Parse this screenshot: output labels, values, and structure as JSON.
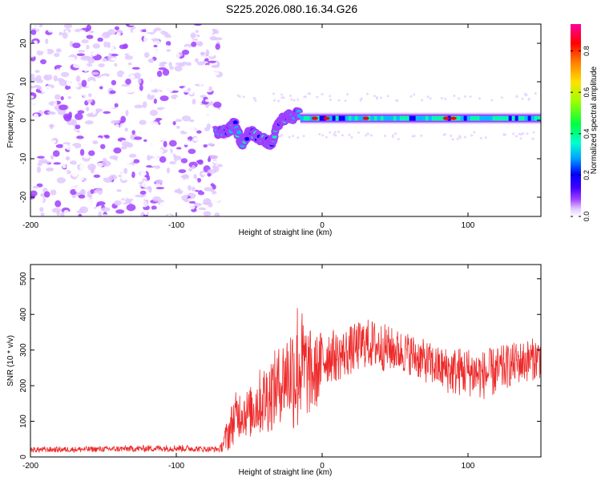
{
  "chart_data": {
    "title": "S225.2026.080.16.34.G26",
    "panels": [
      {
        "type": "heatmap",
        "name": "spectrogram",
        "xlabel": "Height of straight line (km)",
        "ylabel": "Frequency (Hz)",
        "xlim": [
          -200,
          150
        ],
        "ylim": [
          -25,
          25
        ],
        "xticks": [
          -200,
          -100,
          0,
          100
        ],
        "yticks": [
          -20,
          -10,
          0,
          10,
          20
        ],
        "colorbar": {
          "label": "Normalized spectral amplitude",
          "range": [
            0,
            0.93
          ],
          "ticks": [
            0.0,
            0.2,
            0.4,
            0.6,
            0.8
          ],
          "tick_labels": [
            "0.0",
            "0.2",
            "0.4",
            "0.6",
            "0.8"
          ],
          "colors": [
            "#ffffff",
            "#e0c8ff",
            "#a040ff",
            "#4000ff",
            "#0000ff",
            "#00c0ff",
            "#00ffb0",
            "#40ff00",
            "#e0ff00",
            "#ff8000",
            "#ff0000",
            "#ff00a0"
          ]
        },
        "regions": {
          "noise": {
            "x_range": [
              -200,
              -70
            ],
            "y_range": [
              -25,
              25
            ],
            "amplitude": 0.15
          },
          "transition": {
            "x_range": [
              -72,
              -15
            ],
            "freq_path": [
              [
                -72,
                -3
              ],
              [
                -65,
                -3
              ],
              [
                -60,
                -1
              ],
              [
                -55,
                -6
              ],
              [
                -50,
                -3
              ],
              [
                -45,
                -4
              ],
              [
                -40,
                -5
              ],
              [
                -35,
                -6
              ],
              [
                -32,
                -3
              ],
              [
                -28,
                0
              ],
              [
                -24,
                1
              ],
              [
                -20,
                1
              ],
              [
                -15,
                2
              ]
            ]
          },
          "carrier": {
            "x_range": [
              -15,
              150
            ],
            "freq": 0.5,
            "amplitude": 0.45
          }
        }
      },
      {
        "type": "line",
        "name": "snr",
        "xlabel": "Height of straight line (km)",
        "ylabel": "SNR (10 * v/v)",
        "xlim": [
          -200,
          150
        ],
        "ylim": [
          0,
          540
        ],
        "xticks": [
          -200,
          -100,
          0,
          100
        ],
        "yticks": [
          0,
          100,
          200,
          300,
          400,
          500
        ],
        "color": "#ee2a2a",
        "envelope": {
          "x": [
            -200,
            -150,
            -100,
            -80,
            -70,
            -65,
            -60,
            -55,
            -50,
            -45,
            -40,
            -35,
            -30,
            -25,
            -20,
            -18,
            -15,
            -10,
            -5,
            0,
            5,
            10,
            20,
            30,
            40,
            50,
            60,
            70,
            80,
            90,
            100,
            110,
            120,
            130,
            140,
            150
          ],
          "mean": [
            20,
            22,
            25,
            22,
            22,
            60,
            110,
            130,
            120,
            150,
            160,
            180,
            200,
            230,
            240,
            250,
            260,
            240,
            230,
            270,
            290,
            280,
            300,
            320,
            310,
            300,
            290,
            270,
            250,
            240,
            240,
            230,
            240,
            260,
            270,
            280
          ],
          "spread": [
            8,
            8,
            10,
            8,
            8,
            50,
            70,
            70,
            70,
            90,
            100,
            110,
            110,
            120,
            160,
            220,
            170,
            130,
            110,
            90,
            80,
            70,
            70,
            70,
            70,
            60,
            60,
            60,
            60,
            70,
            70,
            70,
            70,
            60,
            60,
            60
          ]
        }
      }
    ]
  }
}
